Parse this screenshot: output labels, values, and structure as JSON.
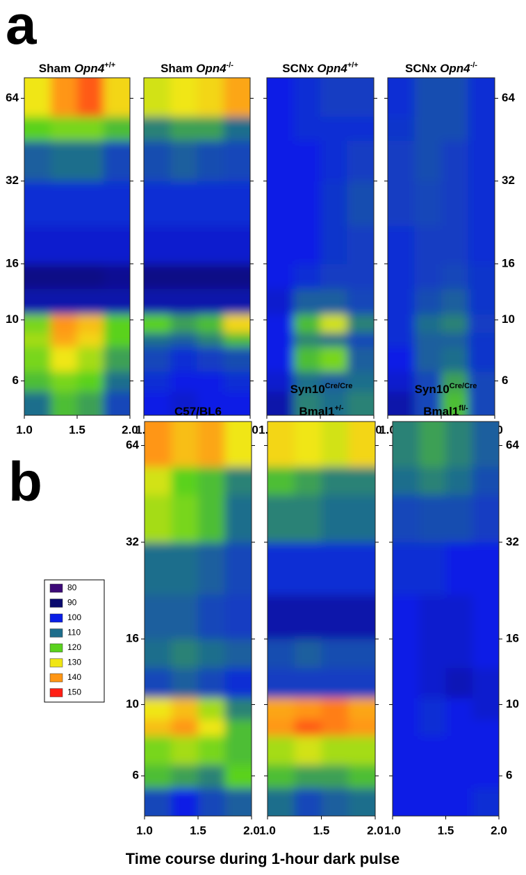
{
  "panel_labels": [
    "a",
    "b"
  ],
  "x_axis_label": "Time course during 1-hour dark pulse",
  "legend": {
    "values": [
      80,
      90,
      100,
      110,
      120,
      130,
      140,
      150
    ],
    "colors": [
      "#3d0a78",
      "#0a0a6e",
      "#0a1ee6",
      "#1e6e8c",
      "#5ad21e",
      "#f0e614",
      "#ff9614",
      "#ff1e14"
    ]
  },
  "chart_data": [
    {
      "type": "heatmap",
      "title": [
        [
          {
            "text": "Sham ",
            "style": "normal"
          },
          {
            "text": "Opn4",
            "style": "italic"
          },
          {
            "text": "+/+",
            "style": "sup"
          }
        ]
      ],
      "y_axis_side": "left",
      "log_y": true,
      "xlim": [
        1,
        2
      ],
      "ylim": [
        4.5,
        76
      ],
      "xticks": [
        {
          "value": 1,
          "label": "1.0"
        },
        1.5,
        {
          "value": 2,
          "label": "2.0"
        }
      ],
      "yticks": [
        6,
        10,
        16,
        32,
        64
      ],
      "x_edges": [
        1,
        1.25,
        1.5,
        1.75,
        2
      ],
      "y_edges": [
        4.5,
        5.5,
        6.5,
        8,
        9,
        10.5,
        13,
        16,
        22,
        32,
        45,
        55,
        76
      ],
      "values": [
        [
          110,
          118,
          115,
          105
        ],
        [
          118,
          122,
          120,
          110
        ],
        [
          122,
          130,
          125,
          115
        ],
        [
          125,
          138,
          132,
          120
        ],
        [
          122,
          140,
          135,
          120
        ],
        [
          95,
          95,
          95,
          95
        ],
        [
          92,
          92,
          92,
          93
        ],
        [
          98,
          98,
          98,
          98
        ],
        [
          102,
          102,
          102,
          102
        ],
        [
          108,
          110,
          110,
          105
        ],
        [
          120,
          122,
          122,
          118
        ],
        [
          130,
          140,
          145,
          132
        ]
      ]
    },
    {
      "type": "heatmap",
      "title": [
        [
          {
            "text": "Sham ",
            "style": "normal"
          },
          {
            "text": "Opn4",
            "style": "italic"
          },
          {
            "text": "-/-",
            "style": "sup"
          }
        ]
      ],
      "y_axis_side": "none",
      "log_y": true,
      "xlim": [
        1,
        2
      ],
      "ylim": [
        4.5,
        76
      ],
      "xticks": [
        {
          "value": 1,
          "label": "1.0"
        },
        1.5,
        {
          "value": 2,
          "label": "2.0"
        }
      ],
      "yticks": [
        6,
        10,
        16,
        32,
        64
      ],
      "x_edges": [
        1,
        1.25,
        1.5,
        1.75,
        2
      ],
      "y_edges": [
        4.5,
        5.5,
        6.5,
        8,
        9,
        10.5,
        13,
        16,
        22,
        32,
        45,
        55,
        76
      ],
      "values": [
        [
          100,
          98,
          100,
          100
        ],
        [
          102,
          100,
          100,
          102
        ],
        [
          105,
          102,
          104,
          106
        ],
        [
          110,
          108,
          112,
          118
        ],
        [
          120,
          115,
          118,
          132
        ],
        [
          95,
          95,
          95,
          95
        ],
        [
          92,
          92,
          92,
          92
        ],
        [
          98,
          98,
          98,
          98
        ],
        [
          102,
          102,
          102,
          102
        ],
        [
          106,
          108,
          106,
          105
        ],
        [
          112,
          115,
          115,
          110
        ],
        [
          128,
          130,
          132,
          138
        ]
      ]
    },
    {
      "type": "heatmap",
      "title": [
        [
          {
            "text": "SCNx ",
            "style": "normal"
          },
          {
            "text": "Opn4",
            "style": "italic"
          },
          {
            "text": "+/+",
            "style": "sup"
          }
        ]
      ],
      "y_axis_side": "none",
      "log_y": true,
      "xlim": [
        1,
        2
      ],
      "ylim": [
        4.5,
        76
      ],
      "xticks": [
        {
          "value": 1,
          "label": "1.0"
        },
        1.5,
        {
          "value": 2,
          "label": "2.0"
        }
      ],
      "yticks": [
        6,
        10,
        16,
        32,
        64
      ],
      "x_edges": [
        1,
        1.25,
        1.5,
        1.75,
        2
      ],
      "y_edges": [
        4.5,
        5.5,
        6.5,
        8,
        9,
        10.5,
        13,
        16,
        22,
        32,
        45,
        55,
        76
      ],
      "values": [
        [
          95,
          112,
          110,
          112
        ],
        [
          98,
          110,
          108,
          110
        ],
        [
          100,
          118,
          122,
          108
        ],
        [
          100,
          112,
          110,
          105
        ],
        [
          100,
          118,
          128,
          112
        ],
        [
          98,
          108,
          108,
          105
        ],
        [
          100,
          102,
          104,
          104
        ],
        [
          100,
          100,
          103,
          104
        ],
        [
          100,
          100,
          103,
          106
        ],
        [
          100,
          100,
          102,
          104
        ],
        [
          100,
          102,
          102,
          102
        ],
        [
          100,
          102,
          104,
          104
        ]
      ]
    },
    {
      "type": "heatmap",
      "title": [
        [
          {
            "text": "SCNx ",
            "style": "normal"
          },
          {
            "text": "Opn4",
            "style": "italic"
          },
          {
            "text": "-/-",
            "style": "sup"
          }
        ]
      ],
      "y_axis_side": "right",
      "log_y": true,
      "xlim": [
        1,
        2
      ],
      "ylim": [
        4.5,
        76
      ],
      "xticks": [
        {
          "value": 1,
          "label": "1.0"
        },
        1.5,
        {
          "value": 2,
          "label": "2.0"
        }
      ],
      "yticks": [
        6,
        10,
        16,
        32,
        64
      ],
      "x_edges": [
        1,
        1.25,
        1.5,
        1.75,
        2
      ],
      "y_edges": [
        4.5,
        5.5,
        6.5,
        8,
        9,
        10.5,
        13,
        16,
        22,
        32,
        45,
        55,
        76
      ],
      "values": [
        [
          95,
          105,
          118,
          105
        ],
        [
          98,
          105,
          115,
          105
        ],
        [
          100,
          108,
          110,
          103
        ],
        [
          102,
          108,
          108,
          103
        ],
        [
          102,
          110,
          112,
          104
        ],
        [
          102,
          106,
          108,
          103
        ],
        [
          102,
          104,
          105,
          103
        ],
        [
          102,
          104,
          104,
          102
        ],
        [
          104,
          105,
          104,
          102
        ],
        [
          104,
          106,
          104,
          102
        ],
        [
          103,
          106,
          106,
          102
        ],
        [
          102,
          106,
          106,
          102
        ]
      ]
    },
    {
      "type": "heatmap",
      "title": [
        [
          {
            "text": "C57/BL6",
            "style": "normal"
          }
        ]
      ],
      "y_axis_side": "left",
      "log_y": true,
      "xlim": [
        1,
        2
      ],
      "ylim": [
        4.5,
        76
      ],
      "xticks": [
        {
          "value": 1,
          "label": "1.0"
        },
        1.5,
        {
          "value": 2,
          "label": "2.0"
        }
      ],
      "yticks": [
        6,
        10,
        16,
        32,
        64
      ],
      "x_edges": [
        1,
        1.25,
        1.5,
        1.75,
        2
      ],
      "y_edges": [
        4.5,
        5.5,
        6.5,
        8,
        9,
        10.5,
        13,
        16,
        22,
        32,
        45,
        55,
        76
      ],
      "values": [
        [
          105,
          100,
          105,
          108
        ],
        [
          118,
          115,
          112,
          120
        ],
        [
          122,
          125,
          122,
          118
        ],
        [
          135,
          140,
          130,
          118
        ],
        [
          130,
          135,
          125,
          112
        ],
        [
          105,
          108,
          105,
          102
        ],
        [
          110,
          112,
          110,
          108
        ],
        [
          108,
          108,
          105,
          104
        ],
        [
          110,
          110,
          108,
          105
        ],
        [
          125,
          122,
          118,
          110
        ],
        [
          128,
          120,
          118,
          112
        ],
        [
          140,
          135,
          138,
          130
        ]
      ]
    },
    {
      "type": "heatmap",
      "title": [
        [
          {
            "text": "Syn10",
            "style": "normal"
          },
          {
            "text": "Cre/Cre",
            "style": "sup"
          }
        ],
        [
          {
            "text": "Bmal1",
            "style": "normal"
          },
          {
            "text": "+/-",
            "style": "sup"
          }
        ]
      ],
      "y_axis_side": "none",
      "log_y": true,
      "xlim": [
        1,
        2
      ],
      "ylim": [
        4.5,
        76
      ],
      "xticks": [
        {
          "value": 1,
          "label": "1.0"
        },
        1.5,
        {
          "value": 2,
          "label": "2.0"
        }
      ],
      "yticks": [
        6,
        10,
        16,
        32,
        64
      ],
      "x_edges": [
        1,
        1.25,
        1.5,
        1.75,
        2
      ],
      "y_edges": [
        4.5,
        5.5,
        6.5,
        8,
        9,
        10.5,
        13,
        16,
        22,
        32,
        45,
        55,
        76
      ],
      "values": [
        [
          110,
          105,
          108,
          110
        ],
        [
          118,
          115,
          115,
          118
        ],
        [
          125,
          128,
          125,
          125
        ],
        [
          140,
          145,
          142,
          140
        ],
        [
          138,
          140,
          142,
          138
        ],
        [
          104,
          104,
          104,
          104
        ],
        [
          106,
          108,
          106,
          106
        ],
        [
          95,
          95,
          95,
          95
        ],
        [
          102,
          102,
          102,
          102
        ],
        [
          112,
          112,
          110,
          110
        ],
        [
          118,
          115,
          112,
          112
        ],
        [
          132,
          130,
          128,
          132
        ]
      ]
    },
    {
      "type": "heatmap",
      "title": [
        [
          {
            "text": "Syn10",
            "style": "normal"
          },
          {
            "text": "Cre/Cre",
            "style": "sup"
          }
        ],
        [
          {
            "text": "Bmal1",
            "style": "normal"
          },
          {
            "text": "fl/-",
            "style": "sup"
          }
        ]
      ],
      "y_axis_side": "right",
      "log_y": true,
      "xlim": [
        1,
        2
      ],
      "ylim": [
        4.5,
        76
      ],
      "xticks": [
        {
          "value": 1,
          "label": "1.0"
        },
        1.5,
        {
          "value": 2,
          "label": "2.0"
        }
      ],
      "yticks": [
        6,
        10,
        16,
        32,
        64
      ],
      "x_edges": [
        1,
        1.25,
        1.5,
        1.75,
        2
      ],
      "y_edges": [
        4.5,
        5.5,
        6.5,
        8,
        9,
        10.5,
        13,
        16,
        22,
        32,
        45,
        55,
        76
      ],
      "values": [
        [
          100,
          100,
          100,
          102
        ],
        [
          100,
          100,
          100,
          100
        ],
        [
          100,
          100,
          100,
          100
        ],
        [
          100,
          102,
          100,
          100
        ],
        [
          100,
          102,
          100,
          98
        ],
        [
          100,
          98,
          96,
          98
        ],
        [
          100,
          98,
          98,
          100
        ],
        [
          100,
          98,
          98,
          100
        ],
        [
          102,
          102,
          100,
          100
        ],
        [
          105,
          106,
          106,
          104
        ],
        [
          110,
          112,
          110,
          106
        ],
        [
          112,
          115,
          112,
          108
        ]
      ]
    }
  ]
}
